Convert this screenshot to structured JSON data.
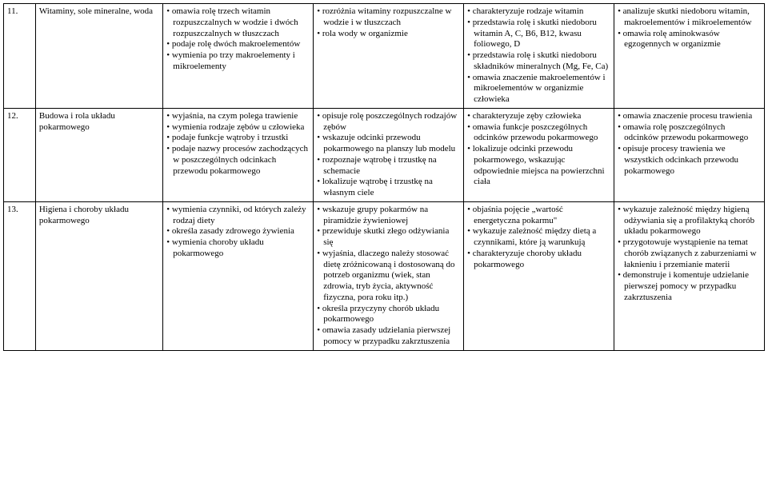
{
  "rows": [
    {
      "num": "11.",
      "topic": "Witaminy, sole mineralne, woda",
      "cols": [
        [
          "omawia rolę trzech witamin rozpuszczalnych w wodzie i dwóch rozpuszczalnych w tłuszczach",
          "podaje rolę dwóch makroelementów",
          "wymienia po trzy makroelementy i mikroelementy"
        ],
        [
          "rozróżnia witaminy rozpuszczalne w wodzie i w tłuszczach",
          "rola wody w organizmie"
        ],
        [
          "charakteryzuje rodzaje witamin",
          "przedstawia rolę i skutki niedoboru witamin A, C, B6, B12, kwasu foliowego, D",
          "przedstawia rolę i skutki niedoboru składników mineralnych (Mg, Fe, Ca)",
          "omawia znaczenie makroelementów i mikroelementów w organizmie człowieka"
        ],
        [
          "analizuje skutki niedoboru witamin, makroelementów i mikroelementów",
          "omawia rolę aminokwasów egzogennych w organizmie"
        ]
      ]
    },
    {
      "num": "12.",
      "topic": "Budowa i rola układu pokarmowego",
      "cols": [
        [
          "wyjaśnia, na czym polega trawienie",
          "wymienia rodzaje zębów u człowieka",
          "podaje funkcje wątroby i trzustki",
          "podaje nazwy procesów zachodzących w poszczególnych odcinkach przewodu pokarmowego"
        ],
        [
          "opisuje rolę poszczególnych rodzajów zębów",
          "wskazuje odcinki przewodu pokarmowego na planszy lub modelu",
          "rozpoznaje wątrobę i trzustkę na schemacie",
          "lokalizuje wątrobę i trzustkę na własnym ciele"
        ],
        [
          "charakteryzuje zęby człowieka",
          "omawia funkcje poszczególnych odcinków przewodu pokarmowego",
          "lokalizuje odcinki przewodu pokarmowego, wskazując odpowiednie miejsca na powierzchni ciała"
        ],
        [
          "omawia znaczenie procesu trawienia",
          "omawia rolę poszczególnych odcinków przewodu pokarmowego",
          "opisuje procesy trawienia we wszystkich odcinkach przewodu pokarmowego"
        ]
      ]
    },
    {
      "num": "13.",
      "topic": "Higiena i choroby układu pokarmowego",
      "cols": [
        [
          "wymienia czynniki, od których zależy rodzaj diety",
          "określa zasady zdrowego żywienia",
          "wymienia choroby układu pokarmowego"
        ],
        [
          "wskazuje grupy pokarmów na piramidzie żywieniowej",
          "przewiduje skutki złego odżywiania się",
          "wyjaśnia, dlaczego należy stosować dietę zróżnicowaną i dostosowaną do potrzeb organizmu (wiek, stan zdrowia, tryb życia, aktywność fizyczna, pora roku itp.)",
          "określa przyczyny chorób układu pokarmowego",
          "omawia zasady udzielania pierwszej pomocy w przypadku zakrztuszenia"
        ],
        [
          "objaśnia pojęcie „wartość energetyczna pokarmu\"",
          "wykazuje zależność między dietą a czynnikami, które ją warunkują",
          "charakteryzuje choroby układu pokarmowego"
        ],
        [
          "wykazuje zależność między higieną odżywiania się a profilaktyką chorób układu pokarmowego",
          "przygotowuje wystąpienie na temat chorób związanych z zaburzeniami w łaknieniu i przemianie materii",
          "demonstruje i komentuje udzielanie pierwszej pomocy w przypadku zakrztuszenia"
        ]
      ]
    }
  ]
}
